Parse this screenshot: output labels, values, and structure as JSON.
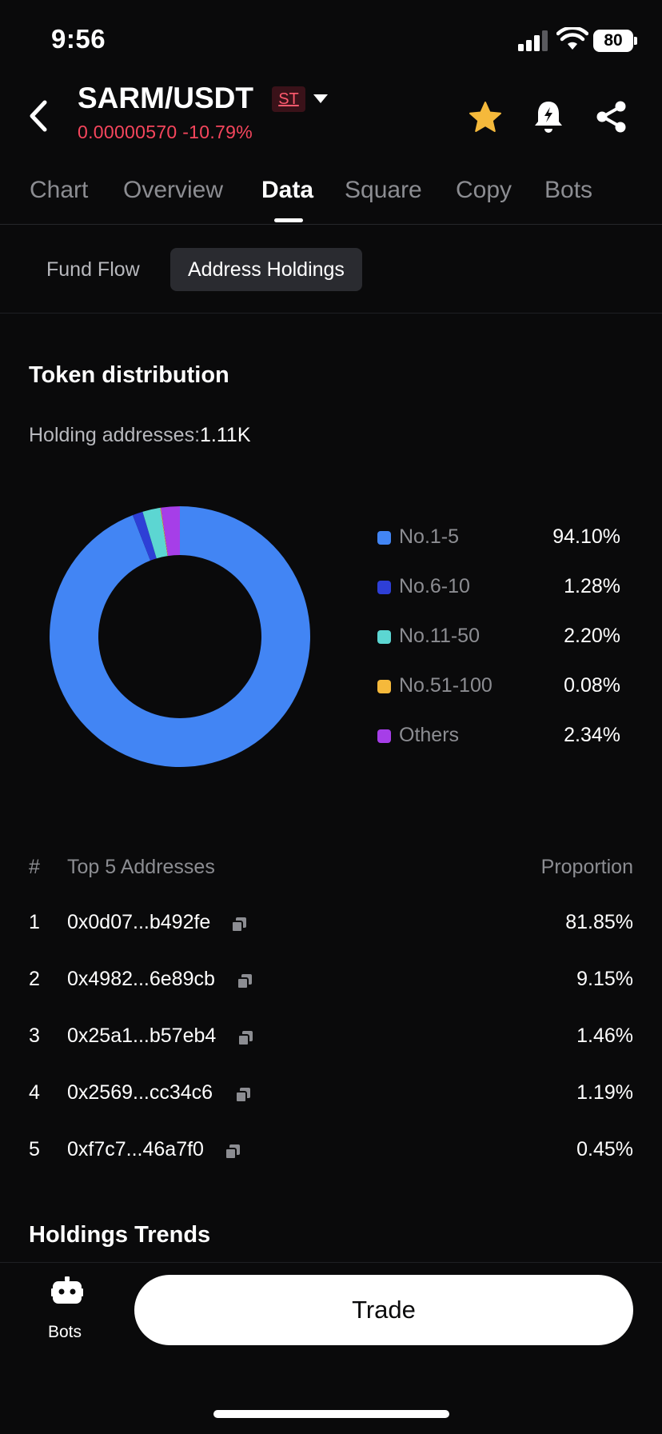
{
  "status_bar": {
    "time": "9:56",
    "battery": "80"
  },
  "header": {
    "pair": "SARM/USDT",
    "badge": "ST",
    "price_change": "0.00000570 -10.79%"
  },
  "tabs": [
    "Chart",
    "Overview",
    "Data",
    "Square",
    "Copy",
    "Bots"
  ],
  "active_tab": "Data",
  "subtabs": [
    "Fund Flow",
    "Address Holdings"
  ],
  "active_subtab": "Address Holdings",
  "distribution": {
    "title": "Token distribution",
    "holding_label": "Holding addresses:",
    "holding_value": "1.11K",
    "legend": [
      {
        "label": "No.1-5",
        "value": "94.10%",
        "color": "#4285f4"
      },
      {
        "label": "No.6-10",
        "value": "1.28%",
        "color": "#2e3fd6"
      },
      {
        "label": "No.11-50",
        "value": "2.20%",
        "color": "#5cd6d2"
      },
      {
        "label": "No.51-100",
        "value": "0.08%",
        "color": "#f5b93b"
      },
      {
        "label": "Others",
        "value": "2.34%",
        "color": "#a63ee8"
      }
    ]
  },
  "top_addresses": {
    "col_index": "#",
    "col_address": "Top 5 Addresses",
    "col_proportion": "Proportion",
    "rows": [
      {
        "index": "1",
        "address": "0x0d07...b492fe",
        "proportion": "81.85%"
      },
      {
        "index": "2",
        "address": "0x4982...6e89cb",
        "proportion": "9.15%"
      },
      {
        "index": "3",
        "address": "0x25a1...b57eb4",
        "proportion": "1.46%"
      },
      {
        "index": "4",
        "address": "0x2569...cc34c6",
        "proportion": "1.19%"
      },
      {
        "index": "5",
        "address": "0xf7c7...46a7f0",
        "proportion": "0.45%"
      }
    ]
  },
  "trends_title": "Holdings Trends",
  "bottom_bar": {
    "bots_label": "Bots",
    "trade_label": "Trade"
  },
  "chart_data": {
    "type": "pie",
    "categories": [
      "No.1-5",
      "No.6-10",
      "No.11-50",
      "No.51-100",
      "Others"
    ],
    "values": [
      94.1,
      1.28,
      2.2,
      0.08,
      2.34
    ],
    "colors": [
      "#4285f4",
      "#2e3fd6",
      "#5cd6d2",
      "#f5b93b",
      "#a63ee8"
    ],
    "title": "Token distribution"
  }
}
